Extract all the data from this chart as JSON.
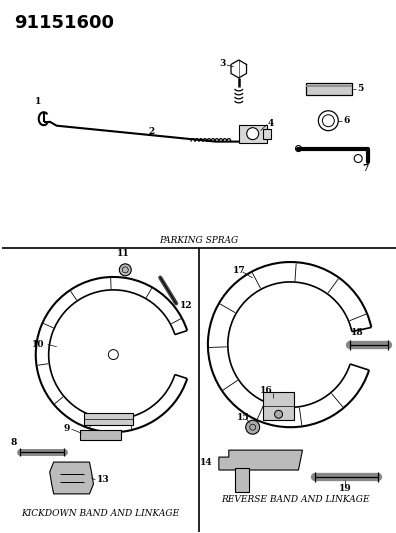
{
  "part_number": "91151600",
  "bg_color": "#ffffff",
  "line_color": "#000000",
  "label_color": "#222222",
  "section_labels": {
    "parking_sprag": "PARKING SPRAG",
    "kickdown": "KICKDOWN BAND AND LINKAGE",
    "reverse": "REVERSE BAND AND LINKAGE"
  },
  "part_number_fontsize": 13,
  "label_fontsize": 6.5
}
